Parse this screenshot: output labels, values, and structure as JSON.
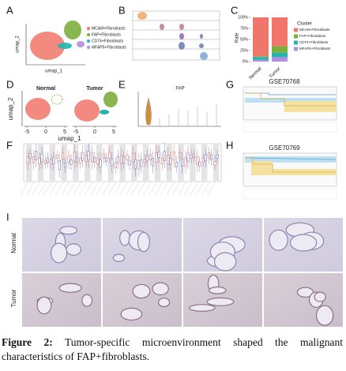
{
  "panels": {
    "A": {
      "label": "A",
      "x_label": "umap_1",
      "y_label": "umap_2"
    },
    "B": {
      "label": "B"
    },
    "C": {
      "label": "C",
      "y_label": "Rate",
      "legend_title": "Cluster",
      "categories": [
        "Normal",
        "Tumor"
      ],
      "series": [
        {
          "name": "MCAM+Fibroblasts",
          "color": "#f0756a",
          "values": [
            88,
            65
          ]
        },
        {
          "name": "FAP+Fibroblasts",
          "color": "#7cae3c",
          "values": [
            2,
            15
          ]
        },
        {
          "name": "CD74+Fibroblasts",
          "color": "#22b5b0",
          "values": [
            6,
            10
          ]
        },
        {
          "name": "MFAP5+Fibroblasts",
          "color": "#b08ee0",
          "values": [
            4,
            10
          ]
        }
      ],
      "ylim": [
        0,
        100
      ],
      "yticks": [
        {
          "value": 0,
          "label": "0%"
        },
        {
          "value": 25,
          "label": "25%"
        },
        {
          "value": 50,
          "label": "50%"
        },
        {
          "value": 75,
          "label": "75%"
        },
        {
          "value": 100,
          "label": "100%"
        }
      ]
    },
    "D": {
      "label": "D",
      "groups": [
        "Normal",
        "Tumor"
      ],
      "x_label": "umap_1",
      "y_label": "umap_2",
      "xticks": [
        -5,
        0,
        5
      ]
    },
    "E": {
      "label": "E",
      "title": "FAP"
    },
    "F": {
      "label": "F"
    },
    "G": {
      "label": "G",
      "title": "GSE70768"
    },
    "H": {
      "label": "H",
      "title": "GSE70769"
    },
    "I": {
      "label": "I",
      "rows": [
        "Normal",
        "Tumor"
      ]
    }
  },
  "caption": {
    "label": "Figure 2:",
    "text": "Tumor-specific microenvironment shaped the malignant characteristics of FAP+fibroblasts."
  }
}
